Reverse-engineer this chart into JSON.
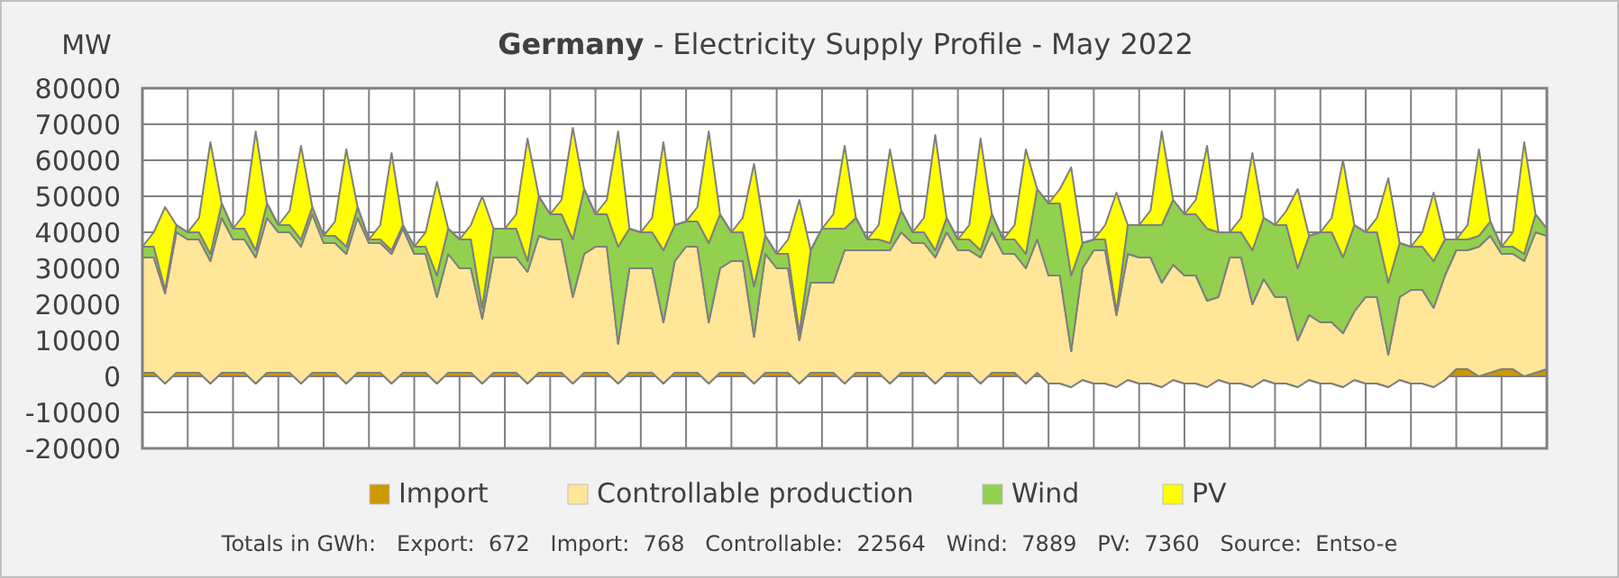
{
  "chart_data": {
    "type": "area",
    "stacked": true,
    "title": "Germany - Electricity Supply Profile - May 2022",
    "ylabel": "MW",
    "categories": [
      null,
      null,
      null,
      null,
      null,
      null,
      null,
      null,
      null,
      null,
      null,
      null,
      null,
      null,
      null,
      null,
      null,
      null,
      null,
      null,
      null,
      null,
      null,
      null,
      null,
      null,
      null,
      null,
      null,
      null,
      null,
      null,
      null,
      null,
      null,
      null,
      null,
      null,
      null,
      null,
      null,
      null,
      null,
      null,
      null,
      null,
      null,
      null,
      null,
      null,
      null,
      null,
      null,
      null,
      null,
      null,
      null,
      null,
      null,
      null,
      null,
      null,
      null,
      null,
      null,
      null,
      null,
      null,
      null,
      null,
      null,
      null,
      null,
      null,
      null,
      null,
      null,
      null,
      null,
      null,
      null,
      null,
      null,
      null,
      null,
      null,
      null,
      null,
      null,
      null,
      null,
      null,
      null,
      null,
      null,
      null,
      null,
      null,
      null,
      null,
      null,
      null,
      null,
      null,
      null,
      null,
      null,
      null,
      null,
      null,
      null,
      null,
      null,
      null,
      null,
      null,
      null,
      null,
      null,
      null,
      null,
      null,
      null,
      null,
      null
    ],
    "series": [
      {
        "name": "Import",
        "color": "#cc9900",
        "values": [
          1000,
          1000,
          -2000,
          1000,
          1000,
          1000,
          -2000,
          1000,
          1000,
          1000,
          -2000,
          1000,
          1000,
          1000,
          -2000,
          1000,
          1000,
          1000,
          -2000,
          1000,
          1000,
          1000,
          -2000,
          1000,
          1000,
          1000,
          -2000,
          1000,
          1000,
          1000,
          -2000,
          1000,
          1000,
          1000,
          -2000,
          1000,
          1000,
          1000,
          -2000,
          1000,
          1000,
          1000,
          -2000,
          1000,
          1000,
          1000,
          -2000,
          1000,
          1000,
          1000,
          -2000,
          1000,
          1000,
          1000,
          -2000,
          1000,
          1000,
          1000,
          -2000,
          1000,
          1000,
          1000,
          -2000,
          1000,
          1000,
          1000,
          -2000,
          1000,
          1000,
          1000,
          -2000,
          1000,
          1000,
          1000,
          -2000,
          1000,
          1000,
          1000,
          -2000,
          1000,
          -2000,
          -2000,
          -3000,
          -1000,
          -2000,
          -2000,
          -3000,
          -1000,
          -2000,
          -2000,
          -3000,
          -1000,
          -2000,
          -2000,
          -3000,
          -1000,
          -2000,
          -2000,
          -3000,
          -1000,
          -2000,
          -2000,
          -3000,
          -1000,
          -2000,
          -2000,
          -3000,
          -1000,
          -2000,
          -2000,
          -3000,
          -1000,
          -2000,
          -2000,
          -3000,
          -1000,
          2000,
          2000,
          0,
          1000,
          2000,
          2000,
          0,
          1000,
          2000
        ]
      },
      {
        "name": "Controllable production",
        "color": "#ffe699",
        "values": [
          32000,
          32000,
          25000,
          39000,
          37000,
          37000,
          34000,
          43000,
          37000,
          37000,
          35000,
          43000,
          39000,
          39000,
          38000,
          44000,
          36000,
          36000,
          36000,
          43000,
          36000,
          36000,
          36000,
          40000,
          33000,
          33000,
          24000,
          33000,
          29000,
          29000,
          18000,
          32000,
          32000,
          32000,
          31000,
          38000,
          37000,
          37000,
          24000,
          33000,
          35000,
          35000,
          11000,
          29000,
          29000,
          29000,
          17000,
          31000,
          35000,
          35000,
          17000,
          29000,
          31000,
          31000,
          13000,
          33000,
          29000,
          29000,
          12000,
          25000,
          25000,
          25000,
          37000,
          34000,
          34000,
          34000,
          37000,
          39000,
          36000,
          36000,
          35000,
          39000,
          34000,
          34000,
          35000,
          39000,
          33000,
          33000,
          32000,
          37000,
          30000,
          30000,
          10000,
          31000,
          37000,
          37000,
          20000,
          35000,
          35000,
          35000,
          29000,
          32000,
          30000,
          30000,
          24000,
          23000,
          35000,
          35000,
          23000,
          28000,
          24000,
          24000,
          13000,
          18000,
          17000,
          17000,
          15000,
          19000,
          24000,
          24000,
          9000,
          23000,
          26000,
          26000,
          22000,
          29000,
          33000,
          33000,
          36000,
          38000,
          32000,
          32000,
          32000,
          39000,
          37000
        ]
      },
      {
        "name": "Wind",
        "color": "#92d050",
        "values": [
          3000,
          3000,
          1000,
          2000,
          2000,
          2000,
          2000,
          4000,
          3000,
          3000,
          2000,
          4000,
          2000,
          2000,
          2000,
          2000,
          2000,
          2000,
          2000,
          3000,
          1000,
          1000,
          1000,
          1000,
          2000,
          2000,
          6000,
          7000,
          8000,
          8000,
          3000,
          8000,
          8000,
          8000,
          3000,
          11000,
          7000,
          7000,
          16000,
          18000,
          9000,
          9000,
          27000,
          11000,
          10000,
          10000,
          20000,
          10000,
          7000,
          7000,
          22000,
          15000,
          8000,
          8000,
          14000,
          5000,
          4000,
          4000,
          2000,
          9000,
          15000,
          15000,
          6000,
          9000,
          3000,
          3000,
          2000,
          6000,
          3000,
          3000,
          2000,
          4000,
          3000,
          3000,
          2000,
          5000,
          4000,
          4000,
          4000,
          14000,
          20000,
          20000,
          21000,
          7000,
          3000,
          3000,
          1000,
          8000,
          9000,
          9000,
          16000,
          18000,
          17000,
          17000,
          20000,
          18000,
          7000,
          7000,
          15000,
          17000,
          20000,
          20000,
          20000,
          22000,
          25000,
          25000,
          21000,
          24000,
          18000,
          18000,
          20000,
          15000,
          12000,
          12000,
          13000,
          10000,
          3000,
          3000,
          3000,
          4000,
          2000,
          2000,
          2000,
          5000,
          2000
        ]
      },
      {
        "name": "PV",
        "color": "#ffff00",
        "values": [
          0,
          4000,
          23000,
          0,
          0,
          4000,
          31000,
          0,
          0,
          4000,
          33000,
          0,
          0,
          4000,
          26000,
          0,
          0,
          4000,
          27000,
          0,
          0,
          4000,
          27000,
          0,
          0,
          4000,
          26000,
          0,
          0,
          4000,
          31000,
          0,
          0,
          4000,
          34000,
          0,
          0,
          4000,
          31000,
          0,
          0,
          4000,
          32000,
          0,
          0,
          4000,
          30000,
          0,
          0,
          4000,
          31000,
          0,
          0,
          4000,
          34000,
          0,
          0,
          4000,
          37000,
          0,
          0,
          4000,
          23000,
          0,
          0,
          4000,
          26000,
          0,
          0,
          4000,
          32000,
          0,
          0,
          4000,
          31000,
          0,
          0,
          4000,
          29000,
          0,
          0,
          4000,
          30000,
          0,
          0,
          4000,
          33000,
          0,
          0,
          4000,
          26000,
          0,
          0,
          4000,
          23000,
          0,
          0,
          4000,
          27000,
          0,
          0,
          4000,
          22000,
          0,
          0,
          4000,
          27000,
          0,
          0,
          4000,
          29000,
          0,
          0,
          4000,
          19000,
          0,
          0,
          4000,
          24000,
          0,
          0,
          4000,
          31000,
          0,
          0
        ]
      }
    ],
    "ylim": [
      -20000,
      80000
    ],
    "yticks": [
      -20000,
      -10000,
      0,
      10000,
      20000,
      30000,
      40000,
      50000,
      60000,
      70000,
      80000
    ],
    "tick_labels": "y",
    "grid": true,
    "legend": "bottom",
    "annotations": [
      "Totals in GWh:   Export:  672   Import:  768   Controllable:  22564   Wind:  7889   PV:  7360   Source:  Entso-e"
    ]
  }
}
